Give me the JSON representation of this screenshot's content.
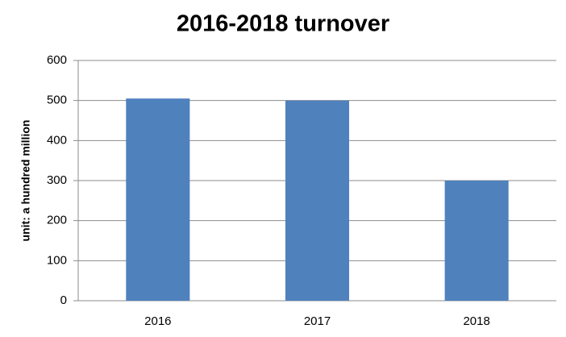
{
  "chart_data": {
    "type": "bar",
    "title": "2016-2018 turnover",
    "y_label": "unit: a hundred million",
    "categories": [
      "2016",
      "2017",
      "2018"
    ],
    "values": [
      505,
      500,
      300
    ],
    "color": "#4f81bd",
    "ylim": [
      0,
      600
    ],
    "yticks": [
      0,
      100,
      200,
      300,
      400,
      500,
      600
    ],
    "grid": true
  }
}
